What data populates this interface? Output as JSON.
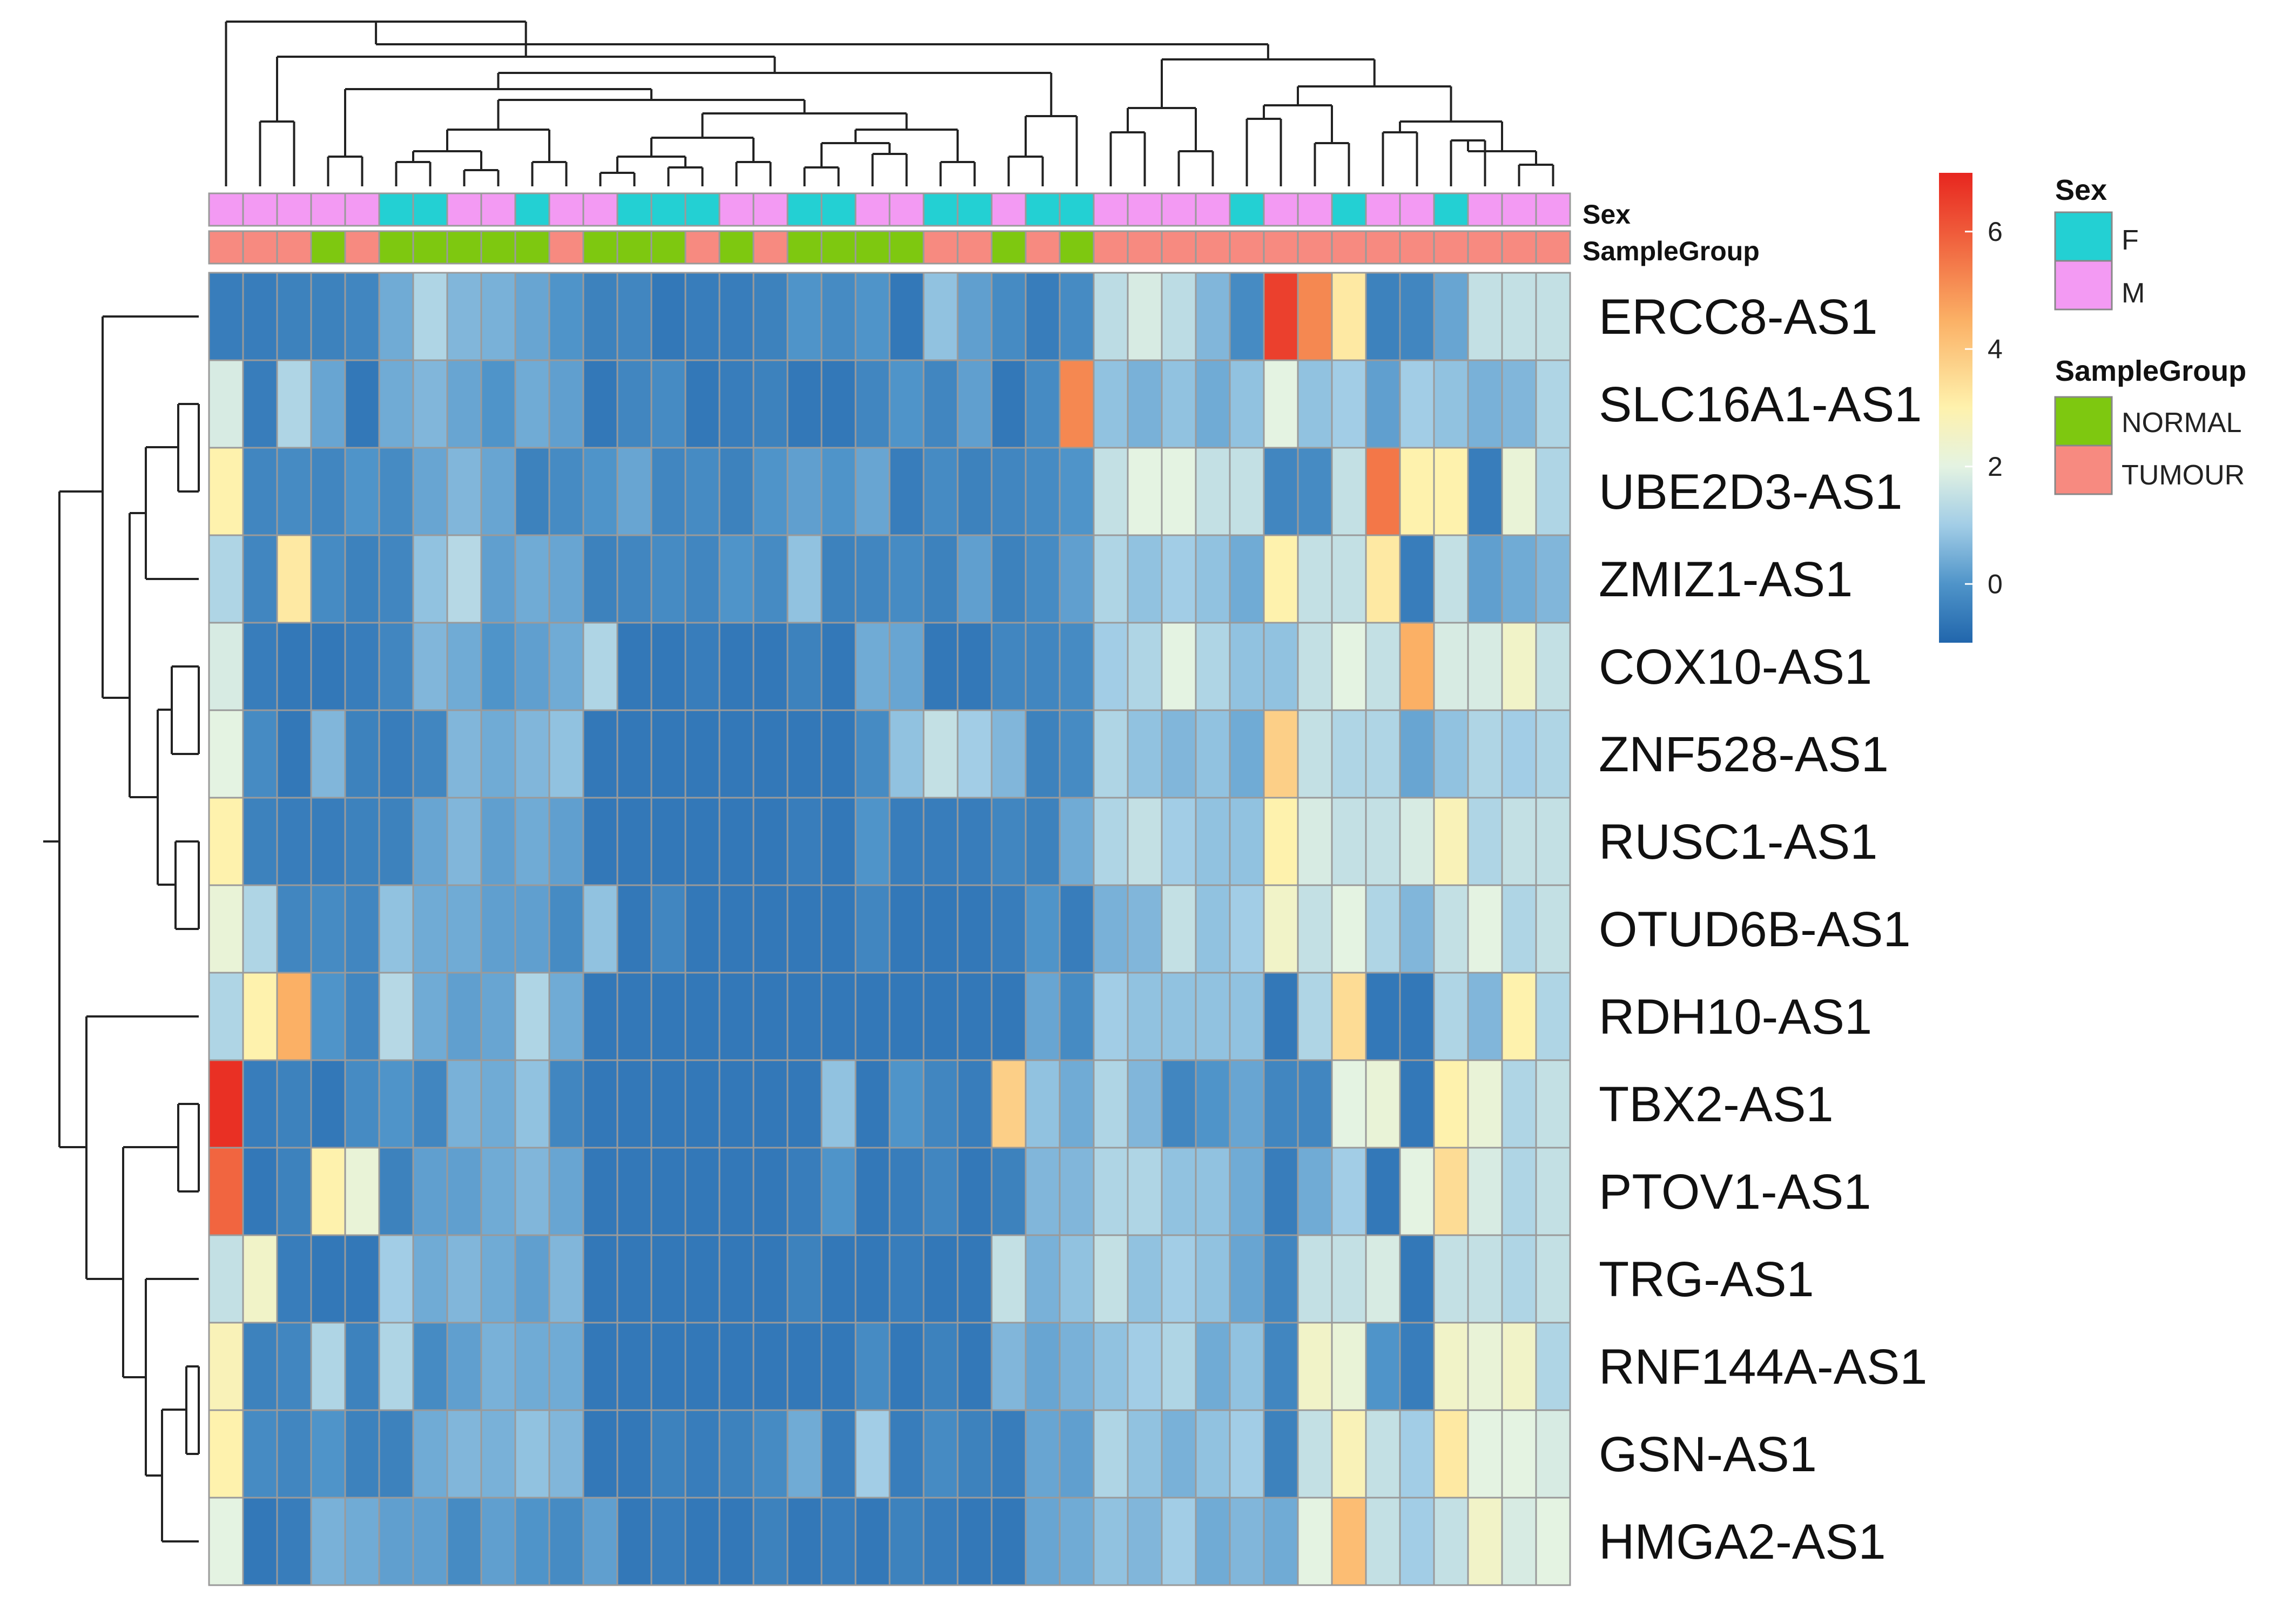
{
  "chart_data": {
    "type": "heatmap",
    "title": "",
    "row_names": [
      "ERCC8-AS1",
      "SLC16A1-AS1",
      "UBE2D3-AS1",
      "ZMIZ1-AS1",
      "COX10-AS1",
      "ZNF528-AS1",
      "RUSC1-AS1",
      "OTUD6B-AS1",
      "RDH10-AS1",
      "TBX2-AS1",
      "PTOV1-AS1",
      "TRG-AS1",
      "RNF144A-AS1",
      "GSN-AS1",
      "HMGA2-AS1"
    ],
    "n_columns": 40,
    "values": [
      [
        -0.5,
        -0.5,
        -0.4,
        -0.4,
        -0.3,
        0.4,
        1.2,
        0.6,
        0.5,
        0.3,
        0,
        -0.4,
        -0.3,
        -0.6,
        -0.5,
        -0.5,
        -0.4,
        0,
        -0.2,
        0,
        -0.6,
        0.8,
        0.2,
        -0.2,
        -0.5,
        -0.2,
        1.4,
        1.8,
        1.4,
        0.6,
        -0.2,
        6.5,
        5.2,
        3.2,
        -0.4,
        -0.3,
        0.3,
        1.5,
        1.5,
        1.5
      ],
      [
        1.8,
        -0.5,
        1.2,
        0.3,
        -0.6,
        0.4,
        0.6,
        0.3,
        0,
        0.4,
        0.2,
        -0.6,
        -0.3,
        -0.2,
        -0.6,
        -0.5,
        -0.4,
        -0.6,
        -0.6,
        -0.3,
        0,
        -0.3,
        0.2,
        -0.6,
        -0.2,
        5.2,
        0.8,
        0.5,
        0.8,
        0.4,
        0.8,
        2,
        0.8,
        1,
        0.2,
        1,
        0.8,
        0.5,
        0.6,
        1.2
      ],
      [
        3,
        -0.3,
        -0.2,
        -0.3,
        0,
        -0.2,
        0.3,
        0.6,
        0.3,
        -0.4,
        -0.2,
        0,
        0.3,
        -0.3,
        -0.2,
        -0.4,
        0,
        0.2,
        0,
        0.3,
        -0.5,
        -0.2,
        -0.4,
        -0.3,
        -0.2,
        0,
        1.5,
        2,
        2,
        1.5,
        1.5,
        -0.3,
        -0.2,
        1.5,
        5.5,
        3,
        3,
        -0.5,
        2.2,
        1.2
      ],
      [
        1.2,
        -0.3,
        3.2,
        -0.2,
        -0.4,
        -0.3,
        0.8,
        1.3,
        0.2,
        0.4,
        0.3,
        -0.4,
        -0.3,
        -0.2,
        -0.3,
        0,
        -0.2,
        0.8,
        -0.4,
        -0.3,
        -0.2,
        -0.4,
        0.2,
        -0.4,
        -0.2,
        0.2,
        1.2,
        0.8,
        1,
        0.8,
        0.4,
        3,
        1.5,
        1.5,
        3.2,
        -0.5,
        1.5,
        0.2,
        0.4,
        0.6
      ],
      [
        1.8,
        -0.5,
        -0.6,
        -0.6,
        -0.5,
        -0.3,
        0.6,
        0.4,
        0,
        0.2,
        0.4,
        1.2,
        -0.6,
        -0.6,
        -0.5,
        -0.6,
        -0.6,
        -0.4,
        -0.6,
        0.4,
        0.3,
        -0.6,
        -0.6,
        -0.3,
        -0.3,
        -0.2,
        1,
        1.2,
        2,
        1.2,
        0.8,
        0.8,
        1.5,
        2,
        1.5,
        4.5,
        1.8,
        1.8,
        2.5,
        1.5
      ],
      [
        2,
        -0.2,
        -0.6,
        0.6,
        -0.4,
        -0.5,
        -0.3,
        0.6,
        0.4,
        0.6,
        0.8,
        -0.6,
        -0.6,
        -0.6,
        -0.6,
        -0.6,
        -0.6,
        -0.6,
        -0.6,
        -0.2,
        0.8,
        1.5,
        1,
        0.6,
        -0.4,
        -0.2,
        1.2,
        0.8,
        0.6,
        0.8,
        0.4,
        3.8,
        1.5,
        1.2,
        1.2,
        0.3,
        0.8,
        1.2,
        1,
        1.2
      ],
      [
        3,
        -0.4,
        -0.5,
        -0.5,
        -0.4,
        -0.4,
        0.3,
        0.6,
        0.2,
        0.4,
        0.2,
        -0.6,
        -0.6,
        -0.6,
        -0.6,
        -0.6,
        -0.6,
        -0.5,
        -0.6,
        0,
        -0.5,
        -0.5,
        -0.5,
        -0.3,
        -0.4,
        0.4,
        1.2,
        1.5,
        1,
        0.8,
        0.8,
        3,
        1.8,
        1.5,
        1.5,
        1.8,
        2.8,
        1.2,
        1.5,
        1.5
      ],
      [
        2.2,
        1.2,
        -0.3,
        -0.2,
        -0.3,
        0.8,
        0.4,
        0.4,
        0.2,
        0.2,
        -0.2,
        0.8,
        -0.6,
        -0.3,
        -0.6,
        -0.6,
        -0.6,
        -0.6,
        -0.6,
        -0.3,
        -0.6,
        -0.6,
        -0.6,
        -0.5,
        0,
        -0.5,
        0.5,
        0.6,
        1.5,
        0.8,
        1,
        2.5,
        1.5,
        2,
        1.2,
        0.6,
        1.5,
        2,
        1.2,
        1.5
      ],
      [
        1.2,
        3,
        4.5,
        0,
        -0.3,
        1.3,
        0.4,
        0.2,
        0.3,
        1.2,
        0.4,
        -0.6,
        -0.6,
        -0.6,
        -0.6,
        -0.6,
        -0.6,
        -0.6,
        -0.6,
        -0.6,
        -0.6,
        -0.6,
        -0.6,
        -0.6,
        0.3,
        -0.2,
        1,
        0.8,
        0.8,
        0.8,
        0.8,
        -0.6,
        1.2,
        3.5,
        -0.6,
        -0.6,
        1.2,
        0.6,
        3,
        1.2
      ],
      [
        6.8,
        -0.5,
        -0.4,
        -0.6,
        -0.2,
        0,
        -0.3,
        0.5,
        0.4,
        0.8,
        -0.3,
        -0.6,
        -0.6,
        -0.6,
        -0.6,
        -0.6,
        -0.6,
        -0.6,
        0.8,
        -0.6,
        0,
        -0.3,
        -0.5,
        3.8,
        0.8,
        0.4,
        1.2,
        0.6,
        -0.3,
        0,
        0.3,
        -0.3,
        -0.3,
        2,
        2.2,
        -0.6,
        3,
        2.2,
        1.2,
        1.5
      ],
      [
        5.8,
        -0.6,
        -0.4,
        3,
        2.2,
        -0.4,
        0.2,
        0.2,
        0.4,
        0.6,
        0.3,
        -0.6,
        -0.6,
        -0.6,
        -0.6,
        -0.6,
        -0.6,
        -0.5,
        0,
        -0.6,
        -0.5,
        -0.3,
        -0.6,
        -0.4,
        0.6,
        0.6,
        1.2,
        1.2,
        0.8,
        0.8,
        0.4,
        -0.5,
        0.4,
        1,
        -0.6,
        2,
        3.5,
        1.8,
        1.2,
        1.5
      ],
      [
        1.5,
        2.5,
        -0.5,
        -0.6,
        -0.6,
        1,
        0.4,
        0.6,
        0.4,
        0.2,
        0.6,
        -0.6,
        -0.6,
        -0.6,
        -0.6,
        -0.6,
        -0.6,
        -0.4,
        -0.6,
        -0.6,
        -0.5,
        -0.6,
        -0.6,
        1.5,
        0.5,
        0.8,
        1.5,
        0.8,
        1,
        0.8,
        0.3,
        -0.3,
        1.5,
        1.5,
        1.8,
        -0.6,
        1.5,
        1.5,
        1.2,
        1.5
      ],
      [
        2.8,
        -0.4,
        -0.3,
        1.2,
        -0.4,
        1.2,
        -0.2,
        0.2,
        0.5,
        0.4,
        0.4,
        -0.6,
        -0.6,
        -0.6,
        -0.6,
        -0.6,
        -0.6,
        -0.6,
        -0.6,
        -0.2,
        -0.6,
        -0.4,
        -0.6,
        0.6,
        0.3,
        0.5,
        0.8,
        1,
        1.2,
        0.4,
        0.8,
        -0.3,
        2.5,
        2.2,
        0,
        -0.5,
        2.5,
        2.2,
        2.5,
        1.2
      ],
      [
        3,
        -0.2,
        -0.3,
        0,
        -0.4,
        -0.4,
        0.4,
        0.6,
        0.5,
        0.8,
        0.6,
        -0.6,
        -0.6,
        -0.4,
        -0.5,
        -0.4,
        -0.2,
        0.4,
        -0.5,
        1,
        -0.5,
        -0.2,
        -0.4,
        -0.5,
        0.3,
        0.2,
        1.2,
        0.8,
        0.5,
        0.8,
        1,
        -0.4,
        1.5,
        2.8,
        1.5,
        1,
        3.2,
        2,
        2,
        1.8
      ],
      [
        2,
        -0.6,
        -0.5,
        0.5,
        0.4,
        0.2,
        0.2,
        -0.2,
        0.2,
        0,
        -0.2,
        0.2,
        -0.6,
        -0.5,
        -0.6,
        -0.6,
        -0.4,
        -0.6,
        -0.5,
        -0.6,
        -0.4,
        -0.5,
        -0.6,
        -0.6,
        0.3,
        0.4,
        0.8,
        0.6,
        1,
        0.4,
        0.6,
        0.4,
        2,
        4.2,
        1.5,
        1,
        1.5,
        2.5,
        1.8,
        2
      ]
    ],
    "column_annotations": {
      "Sex": [
        "M",
        "M",
        "M",
        "M",
        "M",
        "F",
        "F",
        "M",
        "M",
        "F",
        "M",
        "M",
        "F",
        "F",
        "F",
        "M",
        "M",
        "F",
        "F",
        "M",
        "M",
        "F",
        "F",
        "M",
        "F",
        "F",
        "M",
        "M",
        "M",
        "M",
        "F",
        "M",
        "M",
        "F",
        "M",
        "M",
        "F",
        "M",
        "M",
        "M"
      ],
      "SampleGroup": [
        "TUMOUR",
        "TUMOUR",
        "TUMOUR",
        "NORMAL",
        "TUMOUR",
        "NORMAL",
        "NORMAL",
        "NORMAL",
        "NORMAL",
        "NORMAL",
        "TUMOUR",
        "NORMAL",
        "NORMAL",
        "NORMAL",
        "TUMOUR",
        "NORMAL",
        "TUMOUR",
        "NORMAL",
        "NORMAL",
        "NORMAL",
        "NORMAL",
        "TUMOUR",
        "TUMOUR",
        "NORMAL",
        "TUMOUR",
        "NORMAL",
        "TUMOUR",
        "TUMOUR",
        "TUMOUR",
        "TUMOUR",
        "TUMOUR",
        "TUMOUR",
        "TUMOUR",
        "TUMOUR",
        "TUMOUR",
        "TUMOUR",
        "TUMOUR",
        "TUMOUR",
        "TUMOUR",
        "TUMOUR"
      ]
    },
    "annotation_labels": [
      "Sex",
      "SampleGroup"
    ],
    "color_scale": {
      "min": -1,
      "max": 7,
      "ticks": [
        0,
        2,
        4,
        6
      ],
      "stops": [
        {
          "v": -1,
          "c": "#2166ac"
        },
        {
          "v": 0,
          "c": "#4f94c9"
        },
        {
          "v": 1,
          "c": "#a2cde6"
        },
        {
          "v": 2,
          "c": "#e4f3e2"
        },
        {
          "v": 3,
          "c": "#fef2ad"
        },
        {
          "v": 4.5,
          "c": "#fbb065"
        },
        {
          "v": 6,
          "c": "#ef5a3a"
        },
        {
          "v": 7,
          "c": "#e7261f"
        }
      ]
    },
    "legends": [
      {
        "title": "Sex",
        "items": [
          {
            "label": "F",
            "color": "#23d0d3"
          },
          {
            "label": "M",
            "color": "#f39af3"
          }
        ]
      },
      {
        "title": "SampleGroup",
        "items": [
          {
            "label": "NORMAL",
            "color": "#7ec810"
          },
          {
            "label": "TUMOUR",
            "color": "#f78a80"
          }
        ]
      }
    ],
    "grid": true,
    "legend_position": "right",
    "row_dendrogram": true,
    "column_dendrogram": true
  }
}
